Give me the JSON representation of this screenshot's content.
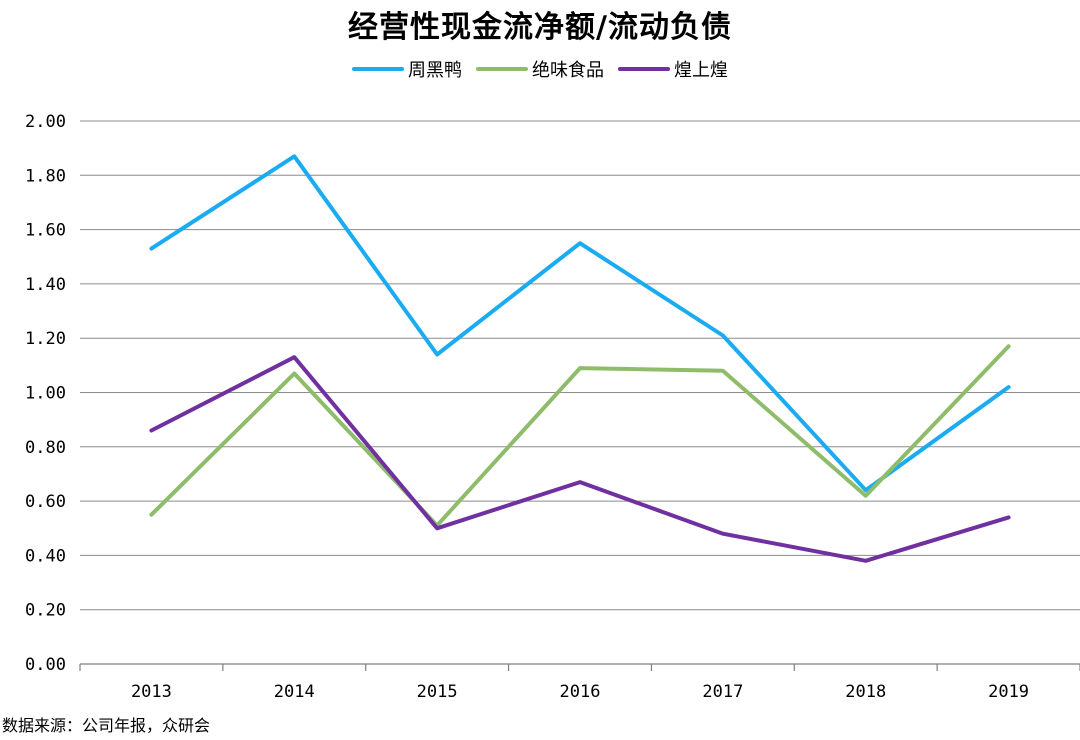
{
  "chart_data": {
    "type": "line",
    "title": "经营性现金流净额/流动负债",
    "categories": [
      "2013",
      "2014",
      "2015",
      "2016",
      "2017",
      "2018",
      "2019"
    ],
    "series": [
      {
        "name": "周黑鸭",
        "color": "#1aabf0",
        "values": [
          1.53,
          1.87,
          1.14,
          1.55,
          1.21,
          0.64,
          1.02
        ]
      },
      {
        "name": "绝味食品",
        "color": "#8fbc6a",
        "values": [
          0.55,
          1.07,
          0.51,
          1.09,
          1.08,
          0.62,
          1.17
        ]
      },
      {
        "name": "煌上煌",
        "color": "#7030a0",
        "values": [
          0.86,
          1.13,
          0.5,
          0.67,
          0.48,
          0.38,
          0.54
        ]
      }
    ],
    "yticks": [
      "0.00",
      "0.20",
      "0.40",
      "0.60",
      "0.80",
      "1.00",
      "1.20",
      "1.40",
      "1.60",
      "1.80",
      "2.00"
    ],
    "ylim": [
      0,
      2
    ],
    "grid": true,
    "legend_position": "top-center"
  },
  "source_note": "数据来源：公司年报，众研会"
}
